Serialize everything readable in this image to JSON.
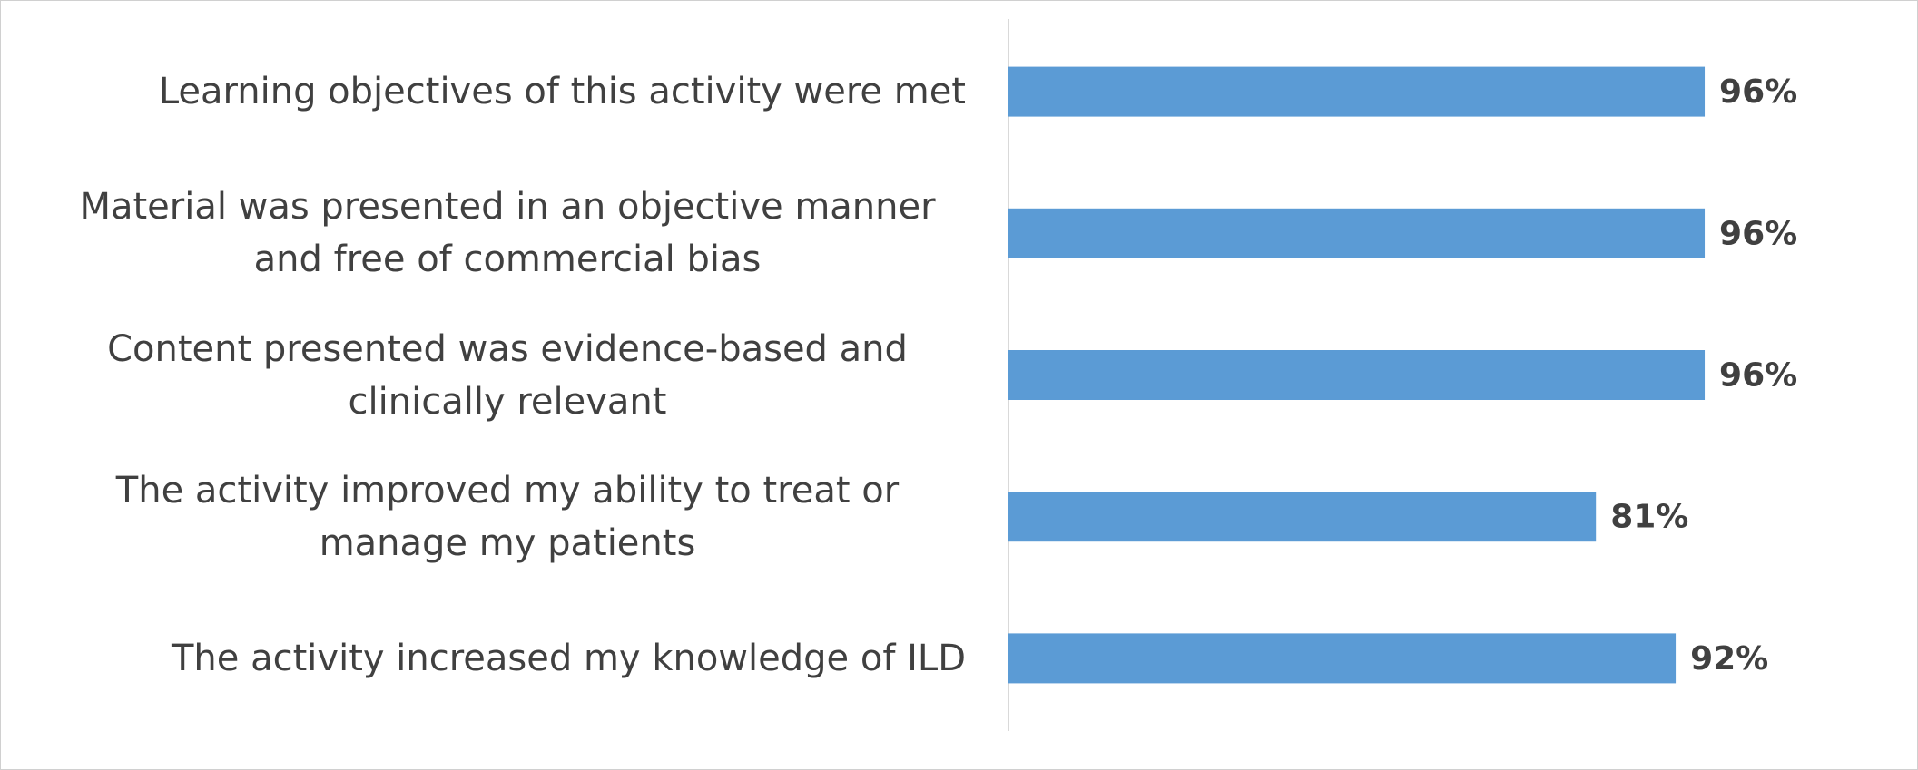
{
  "chart_data": {
    "type": "bar",
    "orientation": "horizontal",
    "categories": [
      "Learning objectives of this activity were met",
      "Material was presented in an objective manner and free of commercial bias",
      "Content presented was evidence-based and clinically relevant",
      "The activity improved my ability to treat or manage my patients",
      "The activity increased my knowledge of ILD"
    ],
    "values": [
      96,
      96,
      96,
      81,
      92
    ],
    "value_labels": [
      "96%",
      "96%",
      "96%",
      "81%",
      "92%"
    ],
    "color": "#5b9bd5",
    "xlim": [
      0,
      100
    ]
  }
}
